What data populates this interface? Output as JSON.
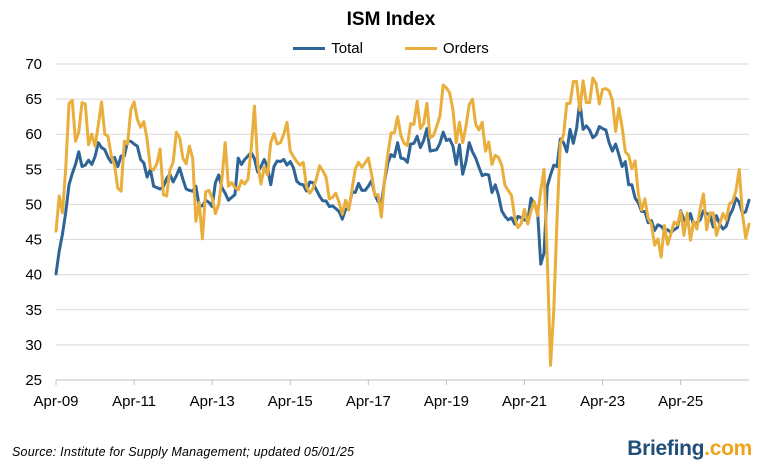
{
  "chart_data": {
    "type": "line",
    "title": "ISM Index",
    "xlabel": "",
    "ylabel": "",
    "ylim": [
      25,
      70
    ],
    "yticks": [
      25,
      30,
      35,
      40,
      45,
      50,
      55,
      60,
      65,
      70
    ],
    "xticks": [
      "Apr-09",
      "Apr-11",
      "Apr-13",
      "Apr-15",
      "Apr-17",
      "Apr-19",
      "Apr-21",
      "Apr-23",
      "Apr-25"
    ],
    "grid": "horizontal",
    "legend_position": "top",
    "start": "Apr-09",
    "series": [
      {
        "name": "Total",
        "color": "#2e6496",
        "values": [
          40.1,
          43.4,
          45.8,
          48.9,
          52.8,
          54.4,
          55.7,
          57.5,
          55.4,
          55.6,
          56.3,
          55.7,
          56.8,
          58.8,
          58.1,
          57.8,
          56.7,
          56.0,
          56.7,
          55.4,
          56.9,
          56.9,
          59.0,
          59.0,
          58.6,
          58.3,
          56.4,
          55.9,
          53.9,
          55.0,
          52.6,
          52.4,
          52.2,
          52.5,
          53.7,
          54.3,
          53.2,
          54.1,
          55.2,
          53.6,
          52.2,
          52.0,
          51.9,
          52.6,
          49.8,
          49.8,
          50.6,
          50.3,
          49.7,
          53.1,
          54.2,
          52.4,
          51.6,
          50.6,
          51.0,
          51.4,
          56.6,
          55.7,
          56.4,
          56.9,
          57.4,
          56.5,
          54.6,
          55.4,
          56.4,
          55.3,
          52.8,
          55.4,
          56.2,
          56.1,
          56.4,
          55.6,
          56.1,
          55.2,
          53.3,
          52.9,
          52.8,
          51.9,
          53.2,
          53.1,
          52.1,
          51.2,
          50.5,
          50.5,
          49.7,
          49.8,
          49.4,
          49.0,
          47.9,
          49.3,
          49.5,
          51.8,
          51.7,
          53.0,
          52.0,
          52.0,
          52.6,
          53.4,
          51.4,
          50.4,
          50.1,
          53.4,
          55.9,
          57.1,
          56.8,
          58.8,
          56.6,
          56.5,
          56.0,
          58.6,
          58.7,
          59.7,
          58.1,
          59.1,
          60.8,
          57.6,
          57.7,
          57.8,
          58.7,
          60.3,
          59.1,
          59.3,
          58.3,
          55.7,
          58.5,
          54.3,
          56.1,
          58.8,
          57.5,
          56.6,
          55.3,
          54.1,
          54.3,
          54.2,
          51.7,
          52.8,
          51.3,
          49.1,
          48.3,
          47.8,
          48.1,
          47.2,
          48.3,
          48.1,
          47.8,
          47.6,
          50.9,
          50.1,
          49.1,
          41.5,
          43.1,
          52.6,
          54.2,
          55.6,
          55.4,
          59.3,
          58.8,
          57.5,
          60.7,
          58.7,
          60.8,
          64.7,
          60.7,
          61.2,
          60.6,
          59.5,
          59.9,
          61.1,
          60.8,
          60.6,
          58.8,
          57.6,
          58.6,
          57.1,
          55.4,
          56.1,
          52.8,
          52.8,
          50.9,
          50.2,
          49.0,
          49.0,
          47.4,
          47.7,
          46.3,
          47.1,
          46.9,
          46.3,
          46.4,
          46.0,
          46.4,
          46.7,
          49.1,
          47.8,
          47.2,
          48.7,
          47.0,
          47.4,
          47.8,
          49.1,
          48.7,
          48.5,
          46.8,
          48.4,
          47.2,
          46.5,
          46.9,
          48.4,
          49.3,
          50.9,
          50.3,
          48.7,
          49.0,
          50.6
        ]
      },
      {
        "name": "Orders",
        "color": "#e9ae3c",
        "values": [
          46.2,
          51.2,
          48.8,
          55.2,
          64.4,
          64.8,
          59.0,
          60.3,
          64.5,
          64.3,
          58.5,
          60.0,
          58.3,
          61.3,
          64.6,
          60.0,
          59.7,
          56.9,
          55.6,
          52.3,
          51.9,
          59.0,
          58.6,
          63.5,
          64.6,
          62.1,
          61.0,
          61.8,
          59.3,
          55.2,
          54.9,
          55.8,
          57.9,
          51.4,
          51.2,
          54.9,
          56.0,
          60.3,
          59.5,
          56.6,
          55.8,
          58.3,
          56.6,
          47.6,
          50.3,
          45.1,
          51.8,
          52.0,
          50.9,
          48.7,
          50.0,
          53.7,
          58.8,
          52.6,
          53.1,
          52.4,
          52.1,
          53.4,
          52.9,
          53.6,
          58.0,
          64.0,
          55.8,
          52.9,
          55.3,
          54.2,
          58.8,
          60.1,
          58.6,
          58.8,
          60.0,
          61.7,
          57.6,
          56.8,
          56.1,
          55.6,
          56.0,
          52.5,
          51.6,
          52.3,
          53.6,
          55.5,
          54.8,
          53.9,
          50.8,
          51.0,
          51.6,
          50.3,
          48.6,
          50.6,
          49.2,
          52.2,
          55.1,
          56.0,
          55.3,
          55.9,
          56.6,
          54.3,
          51.3,
          51.4,
          48.2,
          53.6,
          57.2,
          60.2,
          60.2,
          62.5,
          59.8,
          58.7,
          58.4,
          61.5,
          61.4,
          64.7,
          60.8,
          61.5,
          64.4,
          59.5,
          59.8,
          61.1,
          62.6,
          67.0,
          66.6,
          65.9,
          63.5,
          58.8,
          61.7,
          58.8,
          61.1,
          64.2,
          65.0,
          61.4,
          60.6,
          61.7,
          57.6,
          58.9,
          55.7,
          57.0,
          56.7,
          55.6,
          52.7,
          52.0,
          51.3,
          48.1,
          46.7,
          47.3,
          49.3,
          47.2,
          49.1,
          50.4,
          48.4,
          52.0,
          55.0,
          42.2,
          27.1,
          35.0,
          47.9,
          58.7,
          59.9,
          64.4,
          64.4,
          67.5,
          67.5,
          63.4,
          67.6,
          64.5,
          64.5,
          68.0,
          67.2,
          64.3,
          66.4,
          66.5,
          66.2,
          64.8,
          60.4,
          63.7,
          61.0,
          57.5,
          57.0,
          55.1,
          56.2,
          51.4,
          49.2,
          50.8,
          48.0,
          47.2,
          44.2,
          45.1,
          42.5,
          47.0,
          44.3,
          45.8,
          47.5,
          47.1,
          49.0,
          45.6,
          48.8,
          44.9,
          47.6,
          46.5,
          49.4,
          51.5,
          46.4,
          48.8,
          48.8,
          45.6,
          47.2,
          48.7,
          47.8,
          50.1,
          50.4,
          52.0,
          55.0,
          48.6,
          45.2,
          47.2
        ]
      }
    ]
  },
  "footer": {
    "source_note": "Source: Institute for Supply Management; updated 05/01/25",
    "logo_main": "Briefing",
    "logo_dot": ".com"
  }
}
